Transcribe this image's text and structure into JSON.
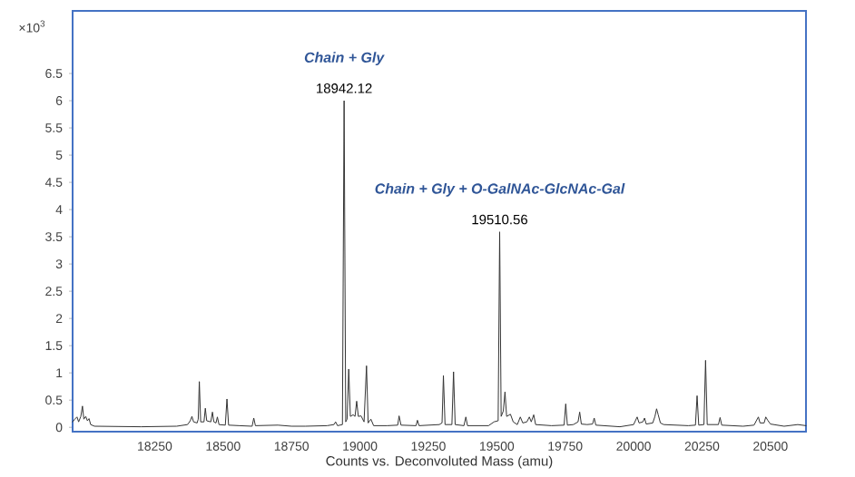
{
  "chart_data": {
    "type": "line",
    "xlabel": "Counts vs. Deconvoluted Mass (amu)",
    "ylabel": "×10$^{3}$",
    "xlim": [
      17950,
      20630
    ],
    "ylim": [
      -0.08,
      7.65
    ],
    "xticks": [
      18250,
      18500,
      18750,
      19000,
      19250,
      19500,
      19750,
      20000,
      20250,
      20500
    ],
    "yticks": [
      0,
      0.5,
      1,
      1.5,
      2,
      2.5,
      3,
      3.5,
      4,
      4.5,
      5,
      5.5,
      6,
      6.5
    ],
    "grid": false,
    "marker": "none",
    "line_style": "solid",
    "annotations": [
      "Chain + Gly",
      {
        "text": "18942.12",
        "x": 18942.12,
        "y": 6.0
      },
      "Chain + Gly + O-GalNAc-GlcNAc-Gal",
      {
        "text": "19510.56",
        "x": 19510.56,
        "y": 3.59
      }
    ],
    "series": [
      {
        "color": "#333333",
        "x": [
          17950,
          17958,
          17966,
          17972,
          17980,
          17986,
          17991,
          17998,
          18004,
          18010,
          18016,
          18030,
          18200,
          18330,
          18370,
          18380,
          18386,
          18392,
          18405,
          18409,
          18413,
          18418,
          18430,
          18435,
          18440,
          18455,
          18461,
          18466,
          18474,
          18479,
          18485,
          18508,
          18514,
          18520,
          18560,
          18606,
          18612,
          18618,
          18700,
          18750,
          18800,
          18880,
          18905,
          18911,
          18918,
          18936,
          18942.12,
          18948,
          18953,
          18959,
          18965,
          18975,
          18982,
          18988,
          18994,
          19004,
          19015,
          19024,
          19030,
          19040,
          19050,
          19100,
          19138,
          19143,
          19150,
          19205,
          19210,
          19216,
          19290,
          19300,
          19305,
          19311,
          19336,
          19342,
          19348,
          19380,
          19387,
          19393,
          19470,
          19490,
          19505,
          19510.56,
          19516,
          19524,
          19530,
          19536,
          19550,
          19560,
          19575,
          19586,
          19595,
          19610,
          19619,
          19626,
          19635,
          19642,
          19700,
          19746,
          19752,
          19758,
          19780,
          19797,
          19803,
          19809,
          19830,
          19850,
          19856,
          19862,
          19950,
          20000,
          20013,
          20020,
          20034,
          20040,
          20046,
          20070,
          20078,
          20084,
          20090,
          20098,
          20110,
          20200,
          20226,
          20232,
          20238,
          20257,
          20263,
          20269,
          20310,
          20316,
          20322,
          20400,
          20440,
          20456,
          20462,
          20477,
          20483,
          20490,
          20500,
          20550,
          20600,
          20630
        ],
        "values": [
          0.1,
          0.15,
          0.19,
          0.1,
          0.2,
          0.39,
          0.15,
          0.2,
          0.12,
          0.16,
          0.05,
          0.02,
          0.01,
          0.02,
          0.05,
          0.12,
          0.2,
          0.1,
          0.08,
          0.15,
          0.84,
          0.1,
          0.1,
          0.35,
          0.12,
          0.1,
          0.28,
          0.1,
          0.08,
          0.19,
          0.05,
          0.04,
          0.52,
          0.04,
          0.03,
          0.02,
          0.17,
          0.03,
          0.04,
          0.02,
          0.02,
          0.03,
          0.05,
          0.1,
          0.03,
          0.05,
          6.0,
          0.1,
          0.15,
          1.07,
          0.2,
          0.23,
          0.2,
          0.48,
          0.2,
          0.21,
          0.1,
          1.13,
          0.08,
          0.15,
          0.03,
          0.03,
          0.04,
          0.21,
          0.04,
          0.03,
          0.13,
          0.03,
          0.05,
          0.08,
          0.95,
          0.05,
          0.05,
          1.02,
          0.05,
          0.03,
          0.19,
          0.03,
          0.03,
          0.1,
          0.12,
          3.59,
          0.2,
          0.3,
          0.65,
          0.2,
          0.24,
          0.1,
          0.05,
          0.19,
          0.08,
          0.1,
          0.19,
          0.1,
          0.23,
          0.05,
          0.03,
          0.04,
          0.43,
          0.04,
          0.05,
          0.1,
          0.28,
          0.06,
          0.05,
          0.06,
          0.17,
          0.04,
          0.01,
          0.05,
          0.19,
          0.08,
          0.1,
          0.17,
          0.06,
          0.08,
          0.2,
          0.34,
          0.23,
          0.08,
          0.05,
          0.03,
          0.04,
          0.58,
          0.04,
          0.05,
          1.23,
          0.05,
          0.05,
          0.18,
          0.04,
          0.02,
          0.04,
          0.19,
          0.08,
          0.08,
          0.19,
          0.13,
          0.06,
          0.02,
          0.05,
          0.03
        ]
      }
    ]
  }
}
